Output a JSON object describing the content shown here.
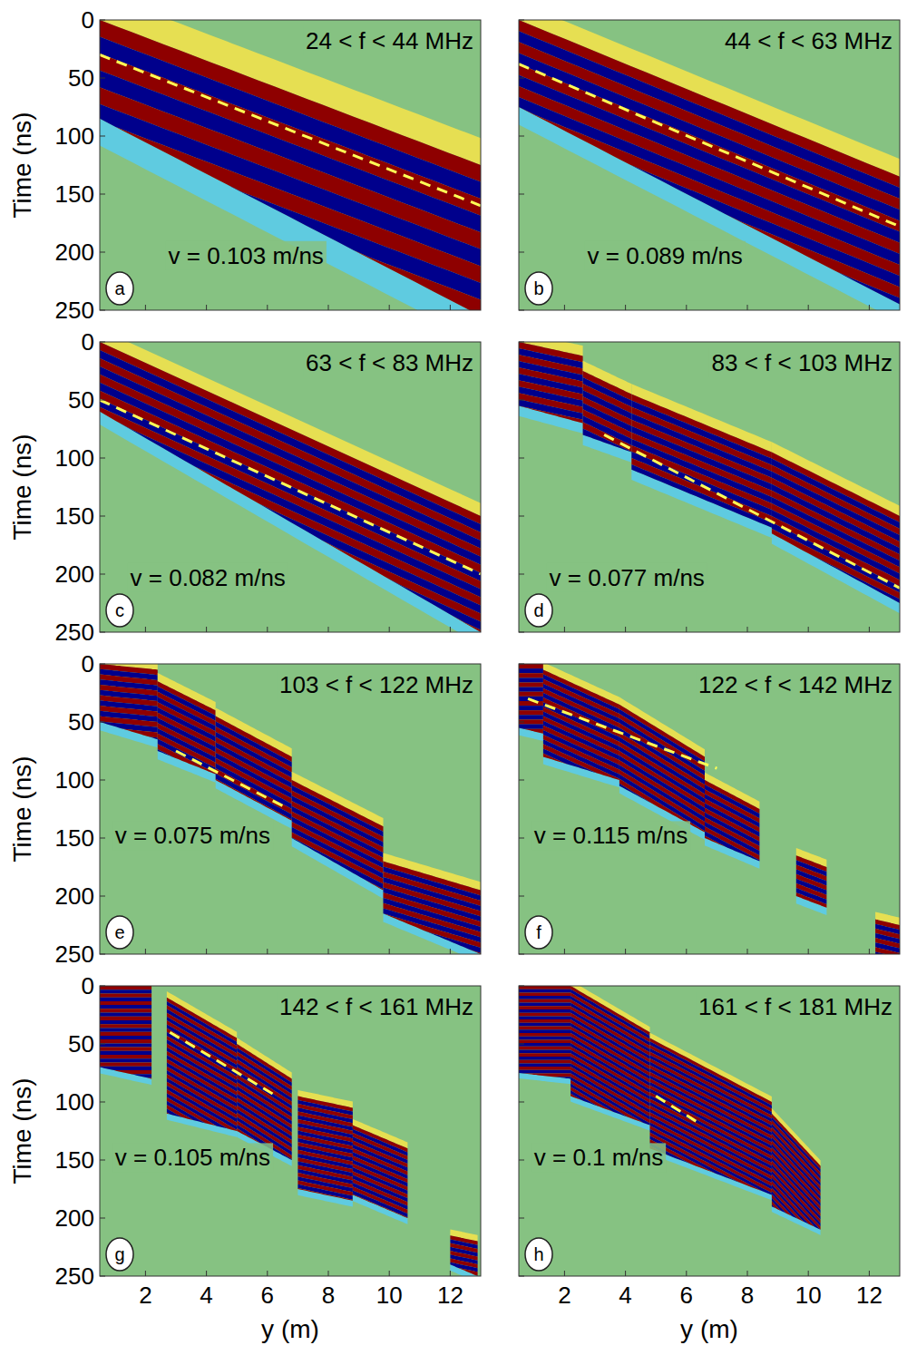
{
  "chart_data": [
    {
      "type": "wavefield",
      "title": "24 < f < 44 MHz",
      "panel_label": "a",
      "annotation": "v = 0.103 m/ns",
      "ylabel": "Time (ns)",
      "xlim": [
        0.5,
        13
      ],
      "ylim": [
        250,
        0
      ],
      "xticks": [
        2,
        4,
        6,
        8,
        10,
        12
      ],
      "yticks": [
        0,
        50,
        100,
        150,
        200,
        250
      ],
      "tick_labels": "y",
      "period": 29,
      "patches": [
        {
          "x": [
            0.5,
            13
          ],
          "upper": [
            0,
            125
          ],
          "lower": [
            85,
            255
          ]
        }
      ],
      "series": [
        {
          "x": [
            0.5,
            13
          ],
          "values": [
            30,
            160
          ],
          "color": "#ffff55",
          "line_style": "dashed"
        }
      ]
    },
    {
      "type": "wavefield",
      "title": "44 < f < 63 MHz",
      "panel_label": "b",
      "annotation": "v = 0.089 m/ns",
      "xlim": [
        0.5,
        13
      ],
      "ylim": [
        250,
        0
      ],
      "xticks": [
        2,
        4,
        6,
        8,
        10,
        12
      ],
      "yticks": [
        0,
        50,
        100,
        150,
        200,
        250
      ],
      "tick_labels": false,
      "period": 19,
      "patches": [
        {
          "x": [
            0.5,
            13
          ],
          "upper": [
            0,
            135
          ],
          "lower": [
            75,
            245
          ]
        }
      ],
      "series": [
        {
          "x": [
            0.5,
            13
          ],
          "values": [
            38,
            178
          ],
          "color": "#ffff55",
          "line_style": "dashed"
        }
      ]
    },
    {
      "type": "wavefield",
      "title": "63 < f < 83 MHz",
      "panel_label": "c",
      "annotation": "v = 0.082 m/ns",
      "ylabel": "Time (ns)",
      "xlim": [
        0.5,
        13
      ],
      "ylim": [
        250,
        0
      ],
      "xticks": [
        2,
        4,
        6,
        8,
        10,
        12
      ],
      "yticks": [
        0,
        50,
        100,
        150,
        200,
        250
      ],
      "tick_labels": "y",
      "period": 14,
      "patches": [
        {
          "x": [
            0.5,
            13
          ],
          "upper": [
            0,
            150
          ],
          "lower": [
            60,
            250
          ]
        }
      ],
      "series": [
        {
          "x": [
            0.5,
            13
          ],
          "values": [
            50,
            200
          ],
          "color": "#ffff55",
          "line_style": "dashed"
        }
      ]
    },
    {
      "type": "wavefield",
      "title": "83 < f < 103 MHz",
      "panel_label": "d",
      "annotation": "v = 0.077 m/ns",
      "xlim": [
        0.5,
        13
      ],
      "ylim": [
        250,
        0
      ],
      "xticks": [
        2,
        4,
        6,
        8,
        10,
        12
      ],
      "yticks": [
        0,
        50,
        100,
        150,
        200,
        250
      ],
      "tick_labels": false,
      "period": 11,
      "patches": [
        {
          "x": [
            0.5,
            2.6
          ],
          "upper": [
            0,
            12
          ],
          "lower": [
            55,
            70
          ]
        },
        {
          "x": [
            2.6,
            4.2
          ],
          "upper": [
            25,
            45
          ],
          "lower": [
            80,
            95
          ]
        },
        {
          "x": [
            4.2,
            8.8
          ],
          "upper": [
            45,
            95
          ],
          "lower": [
            110,
            160
          ]
        },
        {
          "x": [
            8.8,
            13
          ],
          "upper": [
            95,
            150
          ],
          "lower": [
            165,
            225
          ]
        }
      ],
      "series": [
        {
          "x": [
            3.3,
            13
          ],
          "values": [
            80,
            212
          ],
          "color": "#ffff55",
          "line_style": "dashed"
        }
      ]
    },
    {
      "type": "wavefield",
      "title": "103 < f < 122 MHz",
      "panel_label": "e",
      "annotation": "v = 0.075 m/ns",
      "ylabel": "Time (ns)",
      "xlim": [
        0.5,
        13
      ],
      "ylim": [
        250,
        0
      ],
      "xticks": [
        2,
        4,
        6,
        8,
        10,
        12
      ],
      "yticks": [
        0,
        50,
        100,
        150,
        200,
        250
      ],
      "tick_labels": "y",
      "period": 9,
      "patches": [
        {
          "x": [
            0.5,
            2.4
          ],
          "upper": [
            0,
            5
          ],
          "lower": [
            50,
            65
          ]
        },
        {
          "x": [
            2.4,
            4.3
          ],
          "upper": [
            15,
            40
          ],
          "lower": [
            75,
            95
          ]
        },
        {
          "x": [
            4.3,
            6.8
          ],
          "upper": [
            45,
            80
          ],
          "lower": [
            100,
            135
          ]
        },
        {
          "x": [
            6.8,
            9.8
          ],
          "upper": [
            100,
            140
          ],
          "lower": [
            150,
            195
          ]
        },
        {
          "x": [
            9.8,
            13
          ],
          "upper": [
            170,
            195
          ],
          "lower": [
            215,
            250
          ]
        }
      ],
      "series": [
        {
          "x": [
            3,
            6.7
          ],
          "values": [
            75,
            125
          ],
          "color": "#ffff55",
          "line_style": "dashed"
        }
      ]
    },
    {
      "type": "wavefield",
      "title": "122 < f < 142 MHz",
      "panel_label": "f",
      "annotation": "v = 0.115 m/ns",
      "xlim": [
        0.5,
        13
      ],
      "ylim": [
        250,
        0
      ],
      "xticks": [
        2,
        4,
        6,
        8,
        10,
        12
      ],
      "yticks": [
        0,
        50,
        100,
        150,
        200,
        250
      ],
      "tick_labels": false,
      "period": 8,
      "patches": [
        {
          "x": [
            0.5,
            1.3
          ],
          "upper": [
            0,
            0
          ],
          "lower": [
            55,
            60
          ]
        },
        {
          "x": [
            1.3,
            3.8
          ],
          "upper": [
            5,
            35
          ],
          "lower": [
            80,
            100
          ]
        },
        {
          "x": [
            3.8,
            6.6
          ],
          "upper": [
            35,
            80
          ],
          "lower": [
            105,
            145
          ]
        },
        {
          "x": [
            6.6,
            8.4
          ],
          "upper": [
            100,
            125
          ],
          "lower": [
            150,
            170
          ]
        },
        {
          "x": [
            9.6,
            10.6
          ],
          "upper": [
            165,
            175
          ],
          "lower": [
            200,
            210
          ]
        },
        {
          "x": [
            12.2,
            13
          ],
          "upper": [
            220,
            225
          ],
          "lower": [
            250,
            250
          ]
        }
      ],
      "series": [
        {
          "x": [
            0.8,
            7
          ],
          "values": [
            30,
            90
          ],
          "color": "#ffff55",
          "line_style": "dashed"
        }
      ]
    },
    {
      "type": "wavefield",
      "title": "142 < f < 161 MHz",
      "panel_label": "g",
      "annotation": "v = 0.105 m/ns",
      "ylabel": "Time (ns)",
      "xlabel": "y (m)",
      "xlim": [
        0.5,
        13
      ],
      "ylim": [
        250,
        0
      ],
      "xticks": [
        2,
        4,
        6,
        8,
        10,
        12
      ],
      "yticks": [
        0,
        50,
        100,
        150,
        200,
        250
      ],
      "period": 6.6,
      "patches": [
        {
          "x": [
            0.5,
            2.2
          ],
          "upper": [
            0,
            0
          ],
          "lower": [
            70,
            80
          ]
        },
        {
          "x": [
            2.7,
            5
          ],
          "upper": [
            10,
            45
          ],
          "lower": [
            110,
            125
          ]
        },
        {
          "x": [
            5,
            6.8
          ],
          "upper": [
            50,
            80
          ],
          "lower": [
            125,
            150
          ]
        },
        {
          "x": [
            7,
            8.8
          ],
          "upper": [
            95,
            105
          ],
          "lower": [
            175,
            185
          ]
        },
        {
          "x": [
            8.8,
            10.6
          ],
          "upper": [
            120,
            140
          ],
          "lower": [
            180,
            200
          ]
        },
        {
          "x": [
            12,
            12.9
          ],
          "upper": [
            215,
            220
          ],
          "lower": [
            240,
            250
          ]
        }
      ],
      "series": [
        {
          "x": [
            2.8,
            6.3
          ],
          "values": [
            40,
            95
          ],
          "color": "#ffff55",
          "line_style": "dashed"
        }
      ]
    },
    {
      "type": "wavefield",
      "title": "161 < f < 181 MHz",
      "panel_label": "h",
      "annotation": "v = 0.1 m/ns",
      "xlabel": "y (m)",
      "xlim": [
        0.5,
        13
      ],
      "ylim": [
        250,
        0
      ],
      "xticks": [
        2,
        4,
        6,
        8,
        10,
        12
      ],
      "yticks": [
        0,
        50,
        100,
        150,
        200,
        250
      ],
      "tick_labels": "x",
      "period": 5.8,
      "patches": [
        {
          "x": [
            0.5,
            2.2
          ],
          "upper": [
            0,
            0
          ],
          "lower": [
            75,
            80
          ]
        },
        {
          "x": [
            2.2,
            4.8
          ],
          "upper": [
            0,
            40
          ],
          "lower": [
            95,
            120
          ]
        },
        {
          "x": [
            4.8,
            8.8
          ],
          "upper": [
            45,
            100
          ],
          "lower": [
            140,
            180
          ]
        },
        {
          "x": [
            8.8,
            10.4
          ],
          "upper": [
            110,
            155
          ],
          "lower": [
            190,
            210
          ]
        }
      ],
      "series": [
        {
          "x": [
            5,
            6.4
          ],
          "values": [
            95,
            118
          ],
          "color": "#ffff55",
          "line_style": "dashed"
        }
      ]
    }
  ]
}
